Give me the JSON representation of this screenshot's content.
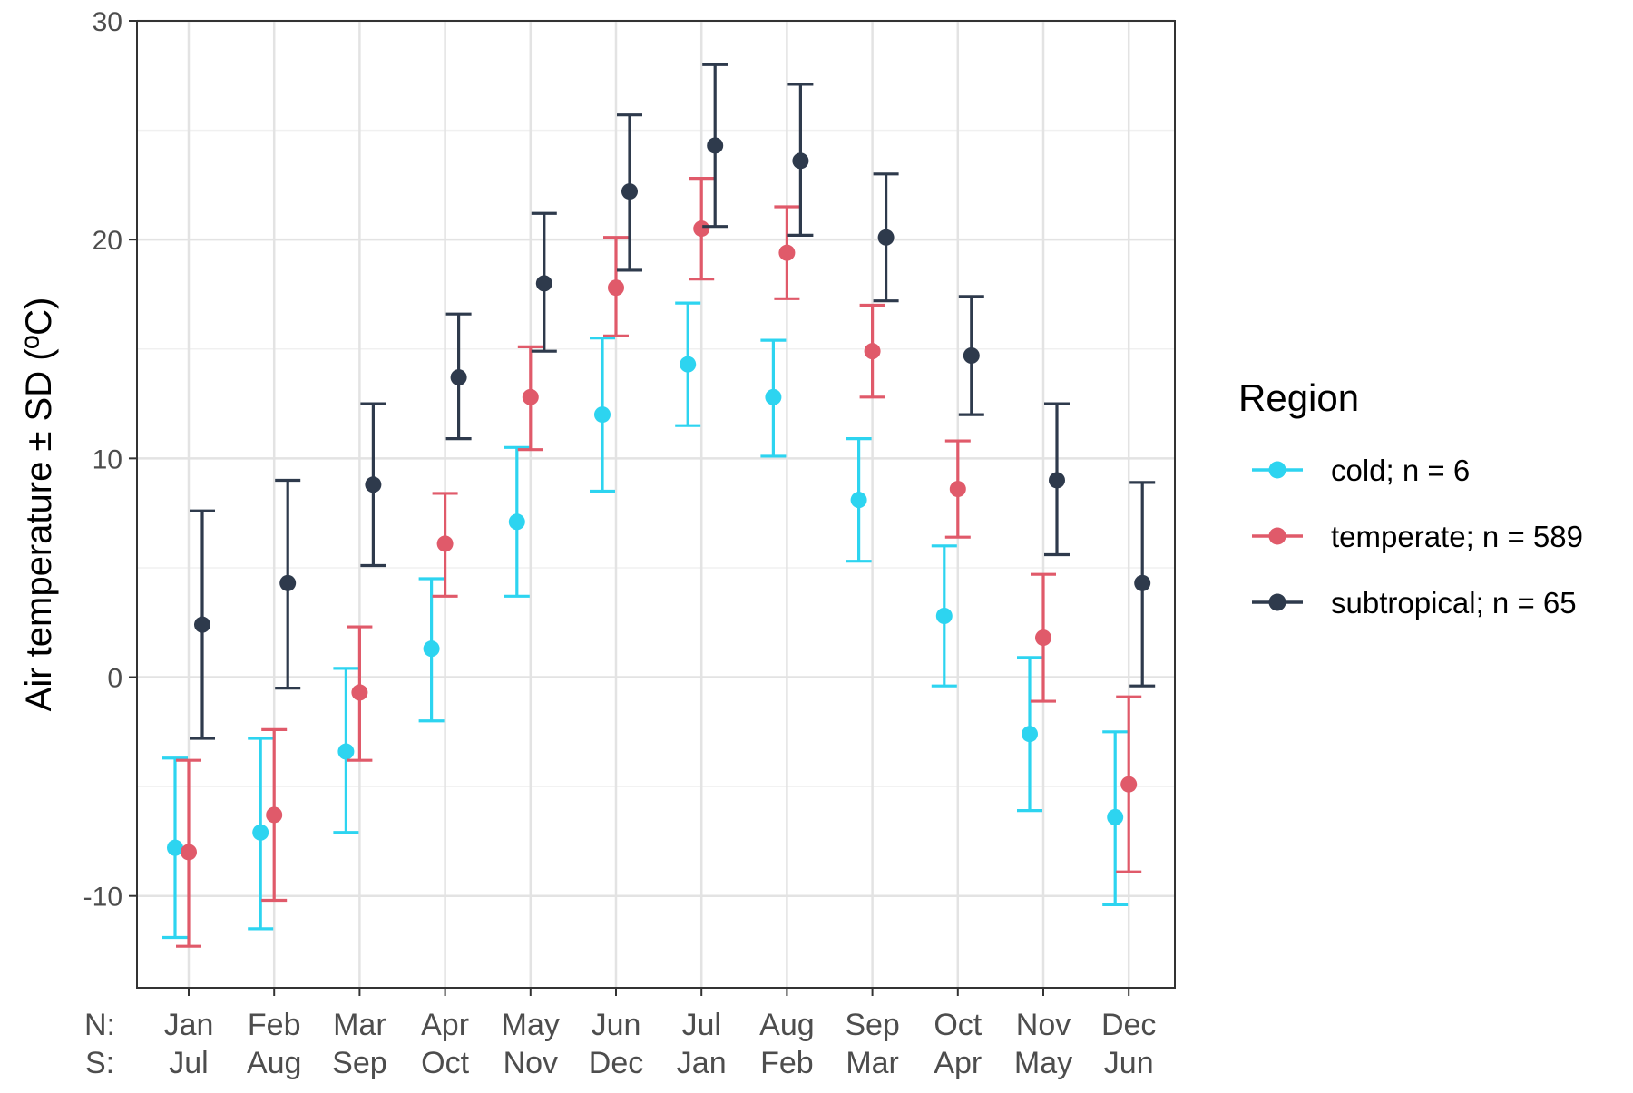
{
  "chart_data": {
    "type": "scatter",
    "error_bars": true,
    "ylabel": "Air temperature ± SD (ºC)",
    "xlabel": "",
    "ylim": [
      -14.2,
      30
    ],
    "yticks": [
      -10,
      0,
      10,
      20,
      30
    ],
    "y_minor_grid": [
      -5,
      5,
      15,
      25
    ],
    "grid": true,
    "hemisphere_labels": {
      "north": "N:",
      "south": "S:"
    },
    "categories_north": [
      "Jan",
      "Feb",
      "Mar",
      "Apr",
      "May",
      "Jun",
      "Jul",
      "Aug",
      "Sep",
      "Oct",
      "Nov",
      "Dec"
    ],
    "categories_south": [
      "Jul",
      "Aug",
      "Sep",
      "Oct",
      "Nov",
      "Dec",
      "Jan",
      "Feb",
      "Mar",
      "Apr",
      "May",
      "Jun"
    ],
    "legend_title": "Region",
    "legend_position": "right",
    "series": [
      {
        "name": "cold; n = 6",
        "color": "#2dd4f0",
        "mean": [
          -7.8,
          -7.1,
          -3.4,
          1.3,
          7.1,
          12.0,
          14.3,
          12.8,
          8.1,
          2.8,
          -2.6,
          -6.4
        ],
        "lower": [
          -11.9,
          -11.5,
          -7.1,
          -2.0,
          3.7,
          8.5,
          11.5,
          10.1,
          5.3,
          -0.4,
          -6.1,
          -10.4
        ],
        "upper": [
          -3.7,
          -2.8,
          0.4,
          4.5,
          10.5,
          15.5,
          17.1,
          15.4,
          10.9,
          6.0,
          0.9,
          -2.5
        ]
      },
      {
        "name": "temperate; n = 589",
        "color": "#e05a6a",
        "mean": [
          -8.0,
          -6.3,
          -0.7,
          6.1,
          12.8,
          17.8,
          20.5,
          19.4,
          14.9,
          8.6,
          1.8,
          -4.9
        ],
        "lower": [
          -12.3,
          -10.2,
          -3.8,
          3.7,
          10.4,
          15.6,
          18.2,
          17.3,
          12.8,
          6.4,
          -1.1,
          -8.9
        ],
        "upper": [
          -3.8,
          -2.4,
          2.3,
          8.4,
          15.1,
          20.1,
          22.8,
          21.5,
          17.0,
          10.8,
          4.7,
          -0.9
        ]
      },
      {
        "name": "subtropical; n = 65",
        "color": "#2e3a4c",
        "mean": [
          2.4,
          4.3,
          8.8,
          13.7,
          18.0,
          22.2,
          24.3,
          23.6,
          20.1,
          14.7,
          9.0,
          4.3
        ],
        "lower": [
          -2.8,
          -0.5,
          5.1,
          10.9,
          14.9,
          18.6,
          20.6,
          20.2,
          17.2,
          12.0,
          5.6,
          -0.4
        ],
        "upper": [
          7.6,
          9.0,
          12.5,
          16.6,
          21.2,
          25.7,
          28.0,
          27.1,
          23.0,
          17.4,
          12.5,
          8.9
        ]
      }
    ]
  }
}
